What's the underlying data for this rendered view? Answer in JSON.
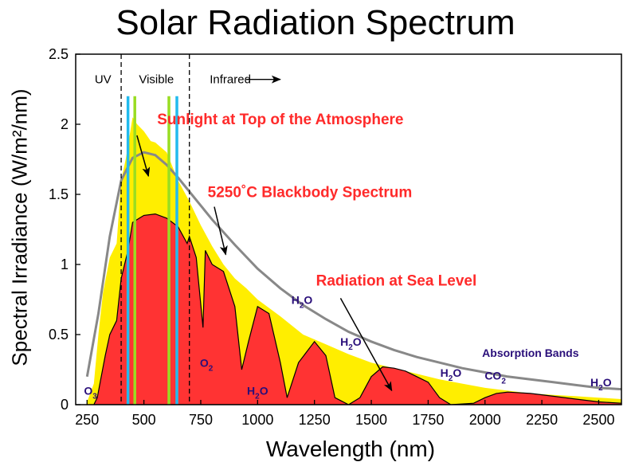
{
  "chart_data": {
    "type": "area",
    "title": "Solar Radiation Spectrum",
    "xlabel": "Wavelength (nm)",
    "ylabel": "Spectral Irradiance (W/m²/nm)",
    "xlim": [
      200,
      2600
    ],
    "ylim": [
      0,
      2.5
    ],
    "x_ticks": [
      250,
      500,
      750,
      1000,
      1250,
      1500,
      1750,
      2000,
      2250,
      2500
    ],
    "y_ticks": [
      "0",
      "0.5",
      "1",
      "1.5",
      "2",
      "2.5"
    ],
    "grid": false,
    "series": [
      {
        "name": "Sunlight at Top of the Atmosphere",
        "color": "#ffee00",
        "points": [
          [
            250,
            0.02
          ],
          [
            280,
            0.15
          ],
          [
            300,
            0.5
          ],
          [
            320,
            0.8
          ],
          [
            350,
            1.05
          ],
          [
            380,
            1.15
          ],
          [
            400,
            1.6
          ],
          [
            420,
            1.75
          ],
          [
            450,
            2.05
          ],
          [
            470,
            2.0
          ],
          [
            500,
            1.95
          ],
          [
            530,
            1.88
          ],
          [
            550,
            1.87
          ],
          [
            600,
            1.8
          ],
          [
            650,
            1.6
          ],
          [
            700,
            1.45
          ],
          [
            750,
            1.28
          ],
          [
            800,
            1.13
          ],
          [
            850,
            1.0
          ],
          [
            900,
            0.9
          ],
          [
            950,
            0.83
          ],
          [
            1000,
            0.75
          ],
          [
            1100,
            0.63
          ],
          [
            1200,
            0.5
          ],
          [
            1300,
            0.43
          ],
          [
            1400,
            0.36
          ],
          [
            1500,
            0.3
          ],
          [
            1600,
            0.26
          ],
          [
            1700,
            0.22
          ],
          [
            1800,
            0.18
          ],
          [
            1900,
            0.15
          ],
          [
            2000,
            0.12
          ],
          [
            2100,
            0.1
          ],
          [
            2200,
            0.08
          ],
          [
            2300,
            0.07
          ],
          [
            2400,
            0.06
          ],
          [
            2500,
            0.05
          ],
          [
            2600,
            0.04
          ]
        ]
      },
      {
        "name": "5250°C Blackbody Spectrum",
        "color": "#888888",
        "points": [
          [
            250,
            0.2
          ],
          [
            300,
            0.65
          ],
          [
            350,
            1.2
          ],
          [
            400,
            1.6
          ],
          [
            450,
            1.76
          ],
          [
            500,
            1.8
          ],
          [
            550,
            1.78
          ],
          [
            600,
            1.71
          ],
          [
            650,
            1.62
          ],
          [
            700,
            1.52
          ],
          [
            750,
            1.42
          ],
          [
            800,
            1.32
          ],
          [
            900,
            1.14
          ],
          [
            1000,
            0.97
          ],
          [
            1100,
            0.83
          ],
          [
            1200,
            0.71
          ],
          [
            1300,
            0.61
          ],
          [
            1400,
            0.52
          ],
          [
            1500,
            0.45
          ],
          [
            1600,
            0.39
          ],
          [
            1700,
            0.34
          ],
          [
            1800,
            0.3
          ],
          [
            1900,
            0.26
          ],
          [
            2000,
            0.23
          ],
          [
            2100,
            0.2
          ],
          [
            2200,
            0.18
          ],
          [
            2300,
            0.16
          ],
          [
            2400,
            0.14
          ],
          [
            2500,
            0.12
          ],
          [
            2600,
            0.11
          ]
        ]
      },
      {
        "name": "Radiation at Sea Level",
        "color": "#ff3333",
        "points": [
          [
            280,
            0
          ],
          [
            295,
            0.05
          ],
          [
            310,
            0.18
          ],
          [
            330,
            0.35
          ],
          [
            350,
            0.5
          ],
          [
            380,
            0.6
          ],
          [
            400,
            0.9
          ],
          [
            430,
            1.1
          ],
          [
            450,
            1.3
          ],
          [
            480,
            1.33
          ],
          [
            500,
            1.35
          ],
          [
            550,
            1.36
          ],
          [
            600,
            1.33
          ],
          [
            650,
            1.27
          ],
          [
            690,
            1.15
          ],
          [
            700,
            1.2
          ],
          [
            730,
            1.05
          ],
          [
            760,
            0.55
          ],
          [
            770,
            1.1
          ],
          [
            800,
            1.0
          ],
          [
            850,
            0.95
          ],
          [
            900,
            0.7
          ],
          [
            930,
            0.25
          ],
          [
            960,
            0.45
          ],
          [
            1000,
            0.7
          ],
          [
            1050,
            0.65
          ],
          [
            1100,
            0.3
          ],
          [
            1130,
            0.05
          ],
          [
            1180,
            0.3
          ],
          [
            1250,
            0.45
          ],
          [
            1300,
            0.35
          ],
          [
            1340,
            0.05
          ],
          [
            1400,
            0.0
          ],
          [
            1450,
            0.05
          ],
          [
            1500,
            0.2
          ],
          [
            1550,
            0.27
          ],
          [
            1600,
            0.26
          ],
          [
            1650,
            0.24
          ],
          [
            1700,
            0.2
          ],
          [
            1750,
            0.16
          ],
          [
            1800,
            0.05
          ],
          [
            1850,
            0.0
          ],
          [
            1950,
            0.01
          ],
          [
            2000,
            0.05
          ],
          [
            2050,
            0.08
          ],
          [
            2100,
            0.09
          ],
          [
            2200,
            0.08
          ],
          [
            2300,
            0.06
          ],
          [
            2400,
            0.04
          ],
          [
            2500,
            0.02
          ],
          [
            2600,
            0.01
          ]
        ]
      }
    ],
    "regions": [
      {
        "label": "UV",
        "x_center": 320
      },
      {
        "label": "Visible",
        "x_center": 555
      },
      {
        "label": "Infrared",
        "x_center": 880
      }
    ],
    "region_bounds": [
      400,
      700
    ],
    "region_arrow_x": [
      950,
      1100
    ],
    "region_arrow_y": 2.32,
    "color_lines": [
      {
        "x": 430,
        "color": "#22bbee"
      },
      {
        "x": 460,
        "color": "#99dd22"
      },
      {
        "x": 610,
        "color": "#99dd22"
      },
      {
        "x": 645,
        "color": "#22bbee"
      }
    ],
    "color_lines_top": 2.2,
    "annotations": [
      {
        "text": "Sunlight at Top of the Atmosphere",
        "x": 1100,
        "y": 2.0,
        "arrow_to": [
          520,
          1.63
        ]
      },
      {
        "text": "5250˚C Blackbody Spectrum",
        "x": 1230,
        "y": 1.48,
        "arrow_to": [
          860,
          1.07
        ]
      },
      {
        "text": "Radiation at Sea Level",
        "x": 1610,
        "y": 0.85,
        "arrow_to": [
          1590,
          0.1
        ]
      }
    ],
    "absorption_bands": [
      {
        "label": "O",
        "sub": "3",
        "x": 265,
        "y": 0.07
      },
      {
        "label": "O",
        "sub": "2",
        "x": 775,
        "y": 0.27
      },
      {
        "label": "H",
        "sub": "2",
        "tail": "O",
        "x": 1000,
        "y": 0.07
      },
      {
        "label": "H",
        "sub": "2",
        "tail": "O",
        "x": 1195,
        "y": 0.72
      },
      {
        "label": "H",
        "sub": "2",
        "tail": "O",
        "x": 1410,
        "y": 0.42
      },
      {
        "label": "Absorption Bands",
        "x": 2200,
        "y": 0.34
      },
      {
        "label": "H",
        "sub": "2",
        "tail": "O",
        "x": 1850,
        "y": 0.2
      },
      {
        "label": "CO",
        "sub": "2",
        "x": 2045,
        "y": 0.18
      },
      {
        "label": "H",
        "sub": "2",
        "tail": "O",
        "x": 2510,
        "y": 0.13
      }
    ]
  }
}
